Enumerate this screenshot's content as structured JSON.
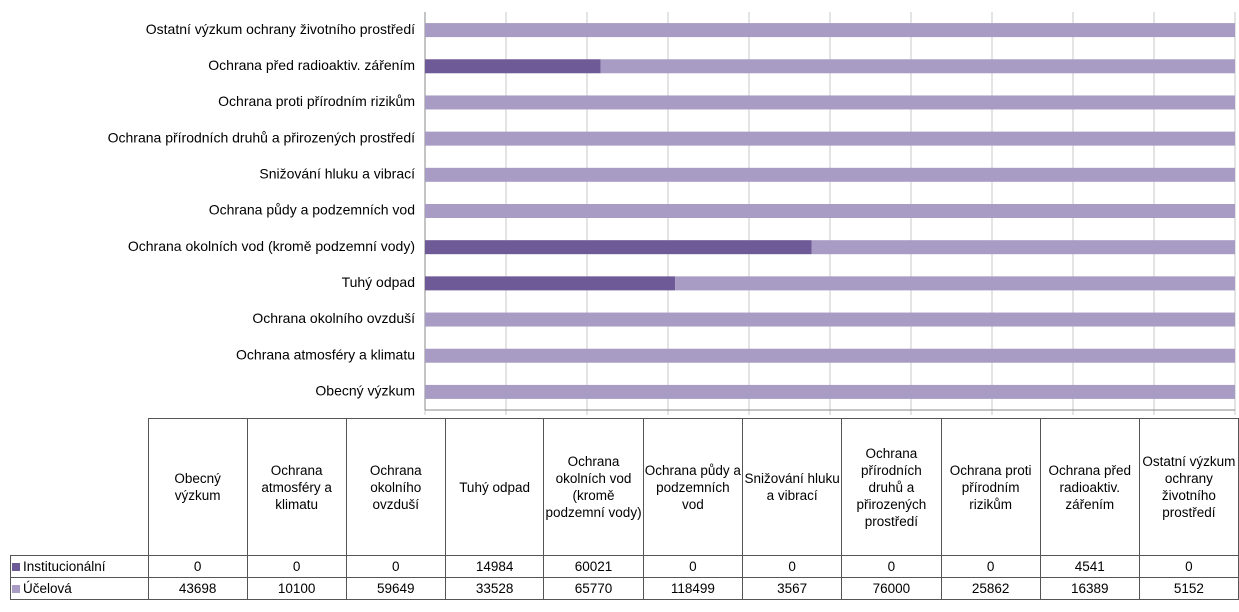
{
  "chart_data": {
    "type": "bar",
    "orientation": "horizontal",
    "stacking": "percent",
    "categories": [
      "Obecný výzkum",
      "Ochrana atmosféry a klimatu",
      "Ochrana okolního ovzduší",
      "Tuhý odpad",
      "Ochrana okolních vod (kromě podzemní vody)",
      "Ochrana půdy a podzemních vod",
      "Snižování hluku a vibrací",
      "Ochrana přírodních druhů a přirozených prostředí",
      "Ochrana proti přírodním rizikům",
      "Ochrana před radioaktiv. zářením",
      "Ostatní výzkum ochrany životního prostředí"
    ],
    "series": [
      {
        "name": "Institucionální",
        "color": "#6e5a96",
        "values": [
          0,
          0,
          0,
          14984,
          60021,
          0,
          0,
          0,
          0,
          4541,
          0
        ]
      },
      {
        "name": "Účelová",
        "color": "#a89cc5",
        "values": [
          43698,
          10100,
          59649,
          33528,
          65770,
          118499,
          3567,
          76000,
          25862,
          16389,
          5152
        ]
      }
    ],
    "xlim": [
      0,
      100
    ],
    "xticks": [
      0,
      10,
      20,
      30,
      40,
      50,
      60,
      70,
      80,
      90,
      100
    ],
    "grid": true,
    "data_table": true
  }
}
